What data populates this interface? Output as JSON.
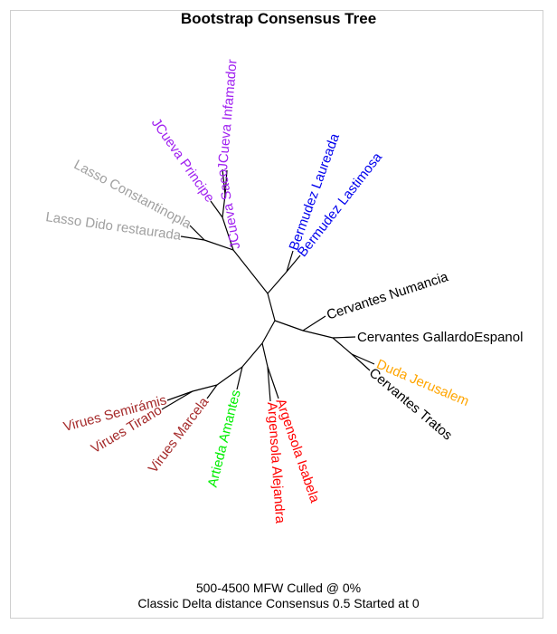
{
  "title": "Bootstrap Consensus Tree",
  "footer_line1": "500-4500 MFW  Culled @ 0%",
  "footer_line2": "Classic Delta distance Consensus 0.5 Started at 0",
  "leaves": {
    "jcueva_infamador": {
      "label": "JCueva Infamador",
      "color": "#a020f0"
    },
    "jcueva_saco": {
      "label": "JCueva Saco",
      "color": "#a020f0"
    },
    "jcueva_principe": {
      "label": "JCueva Principe",
      "color": "#a020f0"
    },
    "lasso_constantinopla": {
      "label": "Lasso Constantinopla",
      "color": "#a0a0a0"
    },
    "lasso_dido": {
      "label": "Lasso Dido restaurada",
      "color": "#a0a0a0"
    },
    "bermudez_laureada": {
      "label": "Bermudez Laureada",
      "color": "#0000ee"
    },
    "bermudez_lastimosa": {
      "label": "Bermudez Lastimosa",
      "color": "#0000ee"
    },
    "cervantes_numancia": {
      "label": "Cervantes Numancia",
      "color": "#000000"
    },
    "cervantes_gallardo": {
      "label": "Cervantes GallardoEspanol",
      "color": "#000000"
    },
    "duda_jerusalem": {
      "label": "Duda Jerusalem",
      "color": "#ffa500"
    },
    "cervantes_tratos": {
      "label": "Cervantes Tratos",
      "color": "#000000"
    },
    "argensola_isabela": {
      "label": "Argensola Isabela",
      "color": "#ff0000"
    },
    "argensola_alejandra": {
      "label": "Argensola Alejandra",
      "color": "#ff0000"
    },
    "artieda_amantes": {
      "label": "Artieda Amantes",
      "color": "#00ee00"
    },
    "virues_marcela": {
      "label": "Virues Marcela",
      "color": "#a52a2a"
    },
    "virues_tirano": {
      "label": "Virues Tirano",
      "color": "#a52a2a"
    },
    "virues_semiramis": {
      "label": "Virues Semirámis",
      "color": "#a52a2a"
    }
  }
}
